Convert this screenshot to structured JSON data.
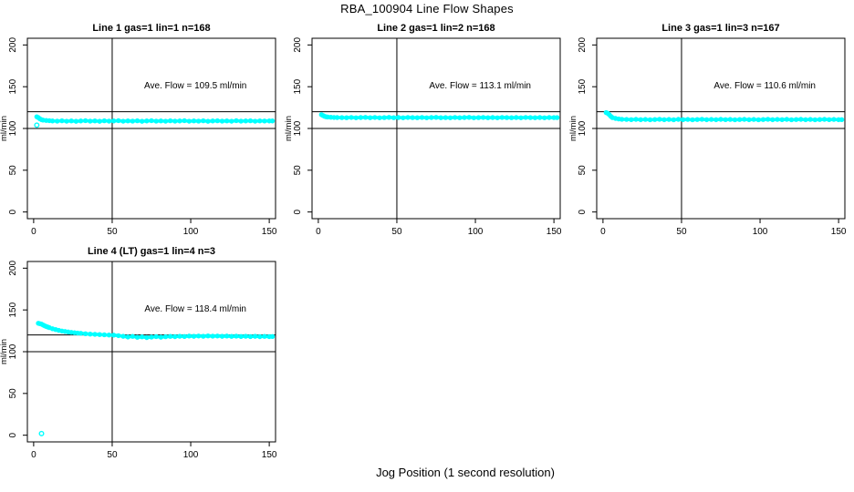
{
  "title": "RBA_100904  Line Flow Shapes",
  "xlabel": "Jog Position (1 second resolution)",
  "colors": {
    "points": "#00FFFF",
    "axis": "#000000",
    "background": "#FFFFFF"
  },
  "chart_data": [
    {
      "type": "scatter",
      "title": "Line 1 gas=1 lin=1 n=168",
      "annotation": "Ave. Flow =  109.5  ml/min",
      "ave_flow": 109.5,
      "ylabel": "ml/min",
      "xlim": [
        -4,
        154
      ],
      "ylim": [
        -8,
        208
      ],
      "xticks": [
        0,
        50,
        100,
        150
      ],
      "yticks": [
        0,
        50,
        100,
        150,
        200
      ],
      "ref_lines_y": [
        100,
        120
      ],
      "ref_line_x": 50,
      "x": [
        2,
        3,
        4,
        5,
        6,
        8,
        10,
        12,
        15,
        18,
        21,
        24,
        27,
        30,
        33,
        36,
        39,
        42,
        45,
        48,
        51,
        54,
        57,
        60,
        63,
        66,
        69,
        72,
        75,
        78,
        81,
        84,
        87,
        90,
        93,
        96,
        99,
        102,
        105,
        108,
        111,
        114,
        117,
        120,
        123,
        126,
        129,
        132,
        135,
        138,
        141,
        144,
        147,
        150,
        152
      ],
      "y": [
        114,
        113,
        111.5,
        110.5,
        110,
        109.6,
        109.3,
        109,
        108.8,
        109.2,
        108.7,
        109.1,
        108.6,
        109,
        109.3,
        108.8,
        109.1,
        108.6,
        109.2,
        108.8,
        109,
        109.3,
        108.7,
        109.1,
        108.8,
        109.2,
        108.6,
        109,
        109.3,
        108.8,
        109.1,
        108.7,
        109.2,
        108.8,
        109,
        109.3,
        108.7,
        109.1,
        108.8,
        109.2,
        108.6,
        109,
        109.2,
        108.8,
        109.1,
        108.7,
        109.3,
        108.8,
        109,
        109.2,
        108.7,
        109.1,
        108.9,
        109,
        109
      ],
      "outliers": [
        [
          2,
          104
        ]
      ]
    },
    {
      "type": "scatter",
      "title": "Line 2 gas=1 lin=2 n=168",
      "annotation": "Ave. Flow =  113.1  ml/min",
      "ave_flow": 113.1,
      "ylabel": "ml/min",
      "xlim": [
        -4,
        154
      ],
      "ylim": [
        -8,
        208
      ],
      "xticks": [
        0,
        50,
        100,
        150
      ],
      "yticks": [
        0,
        50,
        100,
        150,
        200
      ],
      "ref_lines_y": [
        100,
        120
      ],
      "ref_line_x": 50,
      "x": [
        2,
        3,
        4,
        5,
        6,
        8,
        10,
        12,
        15,
        18,
        21,
        24,
        27,
        30,
        33,
        36,
        39,
        42,
        45,
        48,
        51,
        54,
        57,
        60,
        63,
        66,
        69,
        72,
        75,
        78,
        81,
        84,
        87,
        90,
        93,
        96,
        99,
        102,
        105,
        108,
        111,
        114,
        117,
        120,
        123,
        126,
        129,
        132,
        135,
        138,
        141,
        144,
        147,
        150,
        152
      ],
      "y": [
        116.5,
        115.5,
        114.5,
        114,
        113.7,
        113.4,
        113.2,
        113.1,
        113,
        112.9,
        113.2,
        112.8,
        113.1,
        113.3,
        112.9,
        113.2,
        112.8,
        113,
        113.3,
        112.9,
        113.1,
        112.8,
        113.2,
        113,
        112.9,
        113.2,
        112.8,
        113.1,
        113.3,
        112.9,
        113,
        112.8,
        113.2,
        112.9,
        113.1,
        113.3,
        112.8,
        113,
        113.2,
        112.9,
        113.1,
        112.8,
        113.2,
        113,
        112.9,
        113.1,
        112.8,
        113.2,
        113,
        112.9,
        113.1,
        112.8,
        113.1,
        113,
        113
      ],
      "outliers": []
    },
    {
      "type": "scatter",
      "title": "Line 3 gas=1 lin=3 n=167",
      "annotation": "Ave. Flow =  110.6  ml/min",
      "ave_flow": 110.6,
      "ylabel": "ml/min",
      "xlim": [
        -4,
        154
      ],
      "ylim": [
        -8,
        208
      ],
      "xticks": [
        0,
        50,
        100,
        150
      ],
      "yticks": [
        0,
        50,
        100,
        150,
        200
      ],
      "ref_lines_y": [
        100,
        120
      ],
      "ref_line_x": 50,
      "x": [
        2,
        3,
        4,
        5,
        6,
        8,
        10,
        12,
        15,
        18,
        21,
        24,
        27,
        30,
        33,
        36,
        39,
        42,
        45,
        48,
        51,
        54,
        57,
        60,
        63,
        66,
        69,
        72,
        75,
        78,
        81,
        84,
        87,
        90,
        93,
        96,
        99,
        102,
        105,
        108,
        111,
        114,
        117,
        120,
        123,
        126,
        129,
        132,
        135,
        138,
        141,
        144,
        147,
        150,
        152
      ],
      "y": [
        119,
        118.2,
        116.5,
        114.5,
        113,
        112,
        111.4,
        111,
        110.8,
        110.6,
        110.9,
        110.5,
        110.8,
        110.4,
        110.7,
        111,
        110.5,
        110.8,
        110.4,
        110.9,
        110.6,
        110.8,
        110.4,
        110.7,
        111,
        110.5,
        110.8,
        110.5,
        110.9,
        110.6,
        110.8,
        110.4,
        110.7,
        110.9,
        110.5,
        110.8,
        110.4,
        110.7,
        111,
        110.5,
        110.8,
        110.6,
        110.9,
        110.4,
        110.7,
        110.9,
        110.5,
        110.8,
        110.4,
        110.7,
        110.9,
        110.6,
        110.8,
        110.5,
        110.6
      ],
      "outliers": []
    },
    {
      "type": "scatter",
      "title": "Line 4 (LT) gas=1 lin=4 n=3",
      "annotation": "Ave. Flow =  118.4  ml/min",
      "ave_flow": 118.4,
      "ylabel": "ml/min",
      "xlim": [
        -4,
        154
      ],
      "ylim": [
        -8,
        208
      ],
      "xticks": [
        0,
        50,
        100,
        150
      ],
      "yticks": [
        0,
        50,
        100,
        150,
        200
      ],
      "ref_lines_y": [
        100,
        120
      ],
      "ref_line_x": 50,
      "x": [
        3,
        4,
        5,
        6,
        7,
        8,
        9,
        10,
        12,
        14,
        16,
        18,
        20,
        22,
        24,
        26,
        28,
        30,
        33,
        36,
        39,
        42,
        45,
        48,
        51,
        54,
        57,
        60,
        63,
        66,
        69,
        72,
        75,
        78,
        81,
        84,
        87,
        90,
        93,
        96,
        99,
        102,
        105,
        108,
        111,
        114,
        117,
        120,
        123,
        126,
        129,
        132,
        135,
        138,
        141,
        144,
        147,
        150,
        152
      ],
      "y": [
        134,
        133.5,
        133,
        132,
        131,
        130.2,
        129.5,
        128.8,
        127.5,
        126.5,
        125.6,
        124.8,
        124.2,
        123.6,
        123.1,
        122.7,
        122.3,
        122,
        121.5,
        121.1,
        120.8,
        120.5,
        120.2,
        120,
        119.8,
        119.2,
        118.4,
        117.6,
        118.3,
        117.2,
        117.8,
        116.9,
        117.5,
        118.1,
        117.4,
        117.9,
        118.3,
        118,
        118.5,
        118.2,
        118.7,
        118.4,
        118.8,
        118.5,
        118.9,
        118.6,
        118.8,
        118.4,
        118.7,
        118.3,
        118.6,
        118.2,
        118.5,
        118.1,
        118.4,
        118,
        118.3,
        118.1,
        118.2
      ],
      "outliers": [
        [
          5,
          2
        ]
      ]
    }
  ]
}
